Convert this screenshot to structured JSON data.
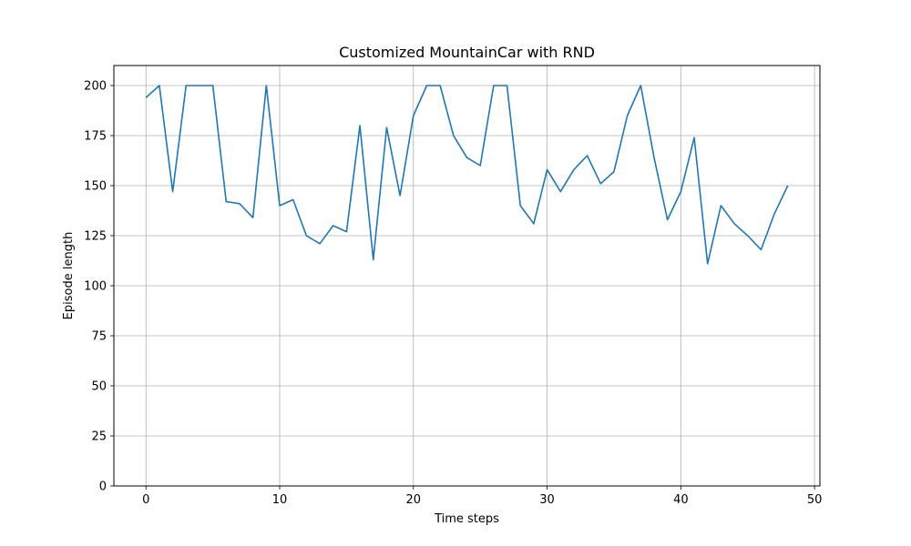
{
  "chart_data": {
    "type": "line",
    "title": "Customized MountainCar with RND",
    "xlabel": "Time steps",
    "ylabel": "Episode length",
    "xlim": [
      -2.4,
      50.4
    ],
    "ylim": [
      0,
      210
    ],
    "xticks": [
      0,
      10,
      20,
      30,
      40,
      50
    ],
    "yticks": [
      0,
      25,
      50,
      75,
      100,
      125,
      150,
      175,
      200
    ],
    "grid": true,
    "series": [
      {
        "color": "#1f77b4",
        "x": [
          0,
          1,
          2,
          3,
          4,
          5,
          6,
          7,
          8,
          9,
          10,
          11,
          12,
          13,
          14,
          15,
          16,
          17,
          18,
          19,
          20,
          21,
          22,
          23,
          24,
          25,
          26,
          27,
          28,
          29,
          30,
          31,
          32,
          33,
          34,
          35,
          36,
          37,
          38,
          39,
          40,
          41,
          42,
          43,
          44,
          45,
          46,
          47,
          48
        ],
        "y": [
          194,
          200,
          147,
          200,
          200,
          200,
          142,
          141,
          134,
          200,
          140,
          143,
          125,
          121,
          130,
          127,
          180,
          113,
          179,
          145,
          185,
          200,
          200,
          175,
          164,
          160,
          200,
          200,
          140,
          131,
          158,
          147,
          158,
          165,
          151,
          157,
          185,
          200,
          164,
          133,
          147,
          174,
          111,
          140,
          131,
          125,
          118,
          136,
          150
        ]
      }
    ]
  }
}
